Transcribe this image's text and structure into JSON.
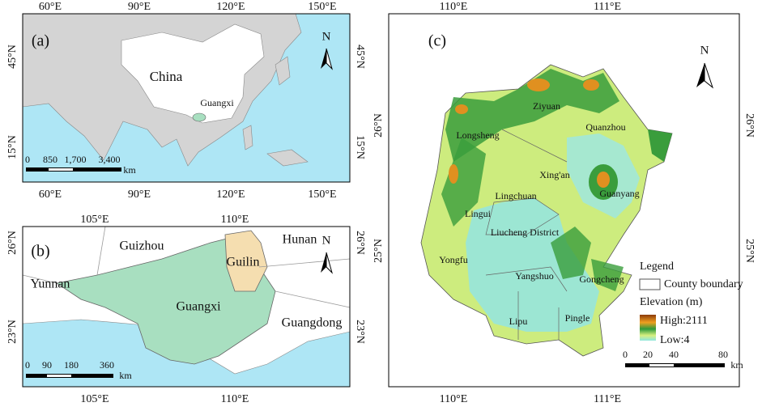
{
  "panel_a": {
    "label": "(a)",
    "top_ticks": [
      "60°E",
      "90°E",
      "120°E",
      "150°E"
    ],
    "bottom_ticks": [
      "60°E",
      "90°E",
      "120°E",
      "150°E"
    ],
    "left_ticks": [
      "45°N",
      "15°N"
    ],
    "right_ticks": [
      "45°N",
      "15°N"
    ],
    "places": [
      "China",
      "Guangxi"
    ],
    "scale": [
      "0",
      "850",
      "1,700",
      "3,400"
    ],
    "scale_unit": "km",
    "north": "N"
  },
  "panel_b": {
    "label": "(b)",
    "top_ticks": [
      "105°E",
      "110°E"
    ],
    "bottom_ticks": [
      "105°E",
      "110°E"
    ],
    "left_ticks": [
      "26°N",
      "23°N"
    ],
    "right_ticks": [
      "26°N",
      "23°N"
    ],
    "places": [
      "Guizhou",
      "Hunan",
      "Guilin",
      "Yunnan",
      "Guangxi",
      "Guangdong"
    ],
    "scale": [
      "0",
      "90",
      "180",
      "360"
    ],
    "scale_unit": "km",
    "north": "N"
  },
  "panel_c": {
    "label": "(c)",
    "top_ticks": [
      "110°E",
      "111°E"
    ],
    "bottom_ticks": [
      "110°E",
      "111°E"
    ],
    "left_ticks": [
      "26°N",
      "25°N"
    ],
    "right_ticks": [
      "26°N",
      "25°N"
    ],
    "counties": [
      "Ziyuan",
      "Quanzhou",
      "Longsheng",
      "Xing'an",
      "Lingchuan",
      "Guanyang",
      "Lingui",
      "Liucheng District",
      "Yongfu",
      "Yangshuo",
      "Gongcheng",
      "Lipu",
      "Pingle"
    ],
    "legend": {
      "title": "Legend",
      "boundary": "County boundary",
      "elevation_title": "Elevation (m)",
      "high": "High:2111",
      "low": "Low:4"
    },
    "scale": [
      "0",
      "20",
      "40",
      "80"
    ],
    "scale_unit": "km",
    "north": "N"
  }
}
